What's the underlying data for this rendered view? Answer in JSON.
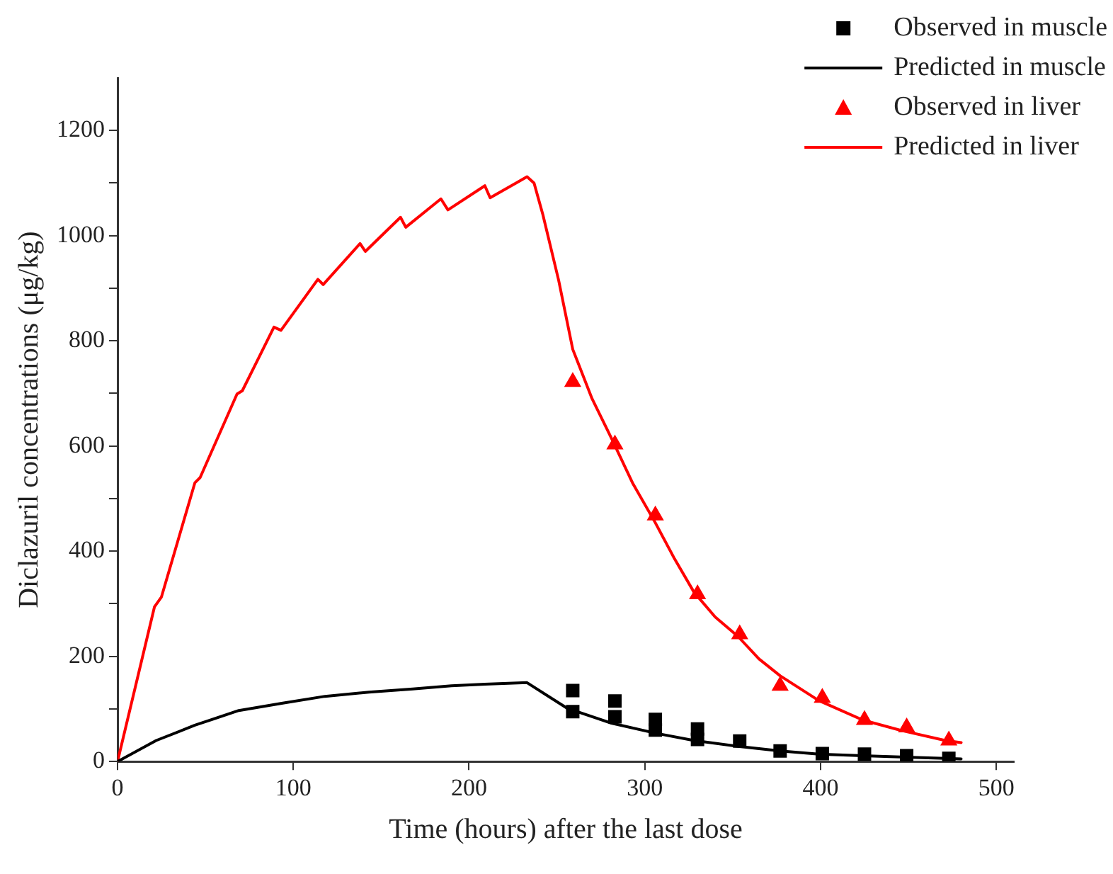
{
  "chart_data": {
    "type": "line",
    "xlabel": "Time (hours) after the last dose",
    "ylabel": "Diclazuril concentrations (μg/kg)",
    "xlim": [
      0,
      510
    ],
    "xticks": [
      0,
      100,
      200,
      300,
      400,
      500
    ],
    "ylim": [
      0,
      1300
    ],
    "yticks": [
      0,
      {
        "value": 100,
        "label": null
      },
      200,
      {
        "value": 300,
        "label": null
      },
      400,
      {
        "value": 500,
        "label": null
      },
      600,
      {
        "value": 700,
        "label": null
      },
      800,
      {
        "value": 900,
        "label": null
      },
      1000,
      {
        "value": 1100,
        "label": null
      },
      1200
    ],
    "grid": false,
    "legend": "top right",
    "series": [
      {
        "name": "Observed in muscle",
        "type": "scatter",
        "marker": "square",
        "color": "#000000",
        "x": [
          259,
          259,
          283,
          283,
          306,
          306,
          330,
          330,
          354,
          377,
          401,
          425,
          449,
          473
        ],
        "values": [
          135,
          95,
          115,
          85,
          80,
          60,
          62,
          42,
          39,
          20,
          15,
          14,
          11,
          6
        ]
      },
      {
        "name": "Predicted in muscle",
        "type": "line",
        "marker": "none",
        "line_style": "solid",
        "color": "#000000",
        "x": [
          0,
          22,
          44,
          69,
          94,
          118,
          143,
          168,
          190,
          209,
          233,
          256,
          281,
          306,
          328,
          353,
          377,
          399,
          424,
          471,
          480
        ],
        "values": [
          0,
          40,
          69,
          97,
          111,
          124,
          132,
          138,
          144,
          147,
          150,
          101,
          73,
          54,
          40,
          29,
          20,
          14,
          11,
          6,
          5
        ]
      },
      {
        "name": "Observed in liver",
        "type": "scatter",
        "marker": "triangle",
        "color": "#ff0000",
        "x": [
          259,
          283,
          306,
          330,
          354,
          377,
          401,
          425,
          449,
          473
        ],
        "values": [
          722,
          603,
          468,
          318,
          242,
          144,
          121,
          79,
          65,
          40
        ]
      },
      {
        "name": "Predicted in liver",
        "type": "line",
        "marker": "none",
        "line_style": "solid",
        "color": "#ff0000",
        "x": [
          0,
          21,
          25,
          44,
          47,
          68,
          71,
          89,
          93,
          114,
          117,
          138,
          141,
          161,
          164,
          184,
          188,
          209,
          212,
          233,
          237,
          242,
          251,
          259,
          270,
          281,
          293,
          306,
          317,
          328,
          340,
          353,
          365,
          377,
          399,
          424,
          446,
          471,
          480
        ],
        "values": [
          0,
          294,
          313,
          530,
          540,
          699,
          705,
          826,
          820,
          917,
          907,
          985,
          970,
          1035,
          1016,
          1070,
          1049,
          1095,
          1072,
          1112,
          1100,
          1040,
          915,
          784,
          690,
          615,
          530,
          454,
          385,
          322,
          275,
          238,
          195,
          163,
          116,
          79,
          59,
          40,
          36
        ]
      }
    ]
  }
}
